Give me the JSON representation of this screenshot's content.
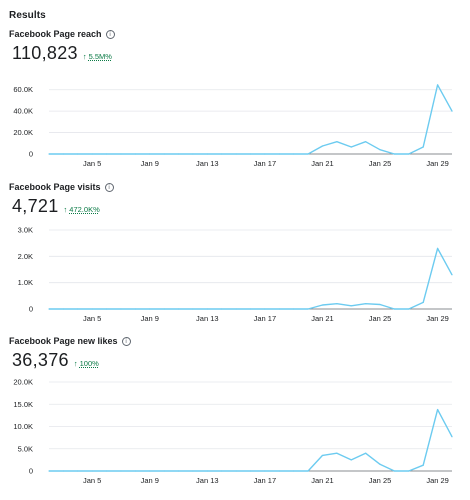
{
  "page": {
    "title": "Results"
  },
  "colors": {
    "line": "#6ccbf0",
    "grid": "#e4e6eb",
    "axis": "#8a8d91",
    "positive": "#0a7a45"
  },
  "icons": {
    "info": "info-icon",
    "up_arrow": "arrow-up-icon"
  },
  "metrics": [
    {
      "label": "Facebook Page reach",
      "info_glyph": "i",
      "value": "110,823",
      "change_arrow": "↑",
      "change": "5.5M%"
    },
    {
      "label": "Facebook Page visits",
      "info_glyph": "i",
      "value": "4,721",
      "change_arrow": "↑",
      "change": "472.0K%"
    },
    {
      "label": "Facebook Page new likes",
      "info_glyph": "i",
      "value": "36,376",
      "change_arrow": "↑",
      "change": "100%"
    }
  ],
  "chart_data": [
    {
      "type": "line",
      "x": [
        "Jan 2",
        "Jan 3",
        "Jan 4",
        "Jan 5",
        "Jan 6",
        "Jan 7",
        "Jan 8",
        "Jan 9",
        "Jan 10",
        "Jan 11",
        "Jan 12",
        "Jan 13",
        "Jan 14",
        "Jan 15",
        "Jan 16",
        "Jan 17",
        "Jan 18",
        "Jan 19",
        "Jan 20",
        "Jan 21",
        "Jan 22",
        "Jan 23",
        "Jan 24",
        "Jan 25",
        "Jan 26",
        "Jan 27",
        "Jan 28",
        "Jan 29",
        "Jan 30"
      ],
      "series": [
        {
          "values": [
            0,
            0,
            0,
            0,
            0,
            0,
            0,
            0,
            0,
            0,
            0,
            0,
            0,
            0,
            0,
            0,
            0,
            0,
            0,
            7500,
            11500,
            6500,
            11500,
            4000,
            0,
            0,
            6500,
            64500,
            40000
          ]
        }
      ],
      "x_tick_labels": [
        "Jan 5",
        "Jan 9",
        "Jan 13",
        "Jan 17",
        "Jan 21",
        "Jan 25",
        "Jan 29"
      ],
      "y_tick_labels": [
        "0",
        "20.0K",
        "40.0K",
        "60.0K"
      ],
      "y_ticks": [
        0,
        20000,
        40000,
        60000
      ],
      "ylim": [
        0,
        70000
      ],
      "grid": true,
      "legend": "none"
    },
    {
      "type": "line",
      "x": [
        "Jan 2",
        "Jan 3",
        "Jan 4",
        "Jan 5",
        "Jan 6",
        "Jan 7",
        "Jan 8",
        "Jan 9",
        "Jan 10",
        "Jan 11",
        "Jan 12",
        "Jan 13",
        "Jan 14",
        "Jan 15",
        "Jan 16",
        "Jan 17",
        "Jan 18",
        "Jan 19",
        "Jan 20",
        "Jan 21",
        "Jan 22",
        "Jan 23",
        "Jan 24",
        "Jan 25",
        "Jan 26",
        "Jan 27",
        "Jan 28",
        "Jan 29",
        "Jan 30"
      ],
      "series": [
        {
          "values": [
            0,
            0,
            0,
            0,
            0,
            0,
            0,
            0,
            0,
            0,
            0,
            0,
            0,
            0,
            0,
            0,
            0,
            0,
            0,
            150,
            200,
            120,
            200,
            170,
            0,
            0,
            250,
            2300,
            1300
          ]
        }
      ],
      "x_tick_labels": [
        "Jan 5",
        "Jan 9",
        "Jan 13",
        "Jan 17",
        "Jan 21",
        "Jan 25",
        "Jan 29"
      ],
      "y_tick_labels": [
        "0",
        "1.0K",
        "2.0K",
        "3.0K"
      ],
      "y_ticks": [
        0,
        1000,
        2000,
        3000
      ],
      "ylim": [
        0,
        3000
      ],
      "grid": true,
      "legend": "none"
    },
    {
      "type": "line",
      "x": [
        "Jan 2",
        "Jan 3",
        "Jan 4",
        "Jan 5",
        "Jan 6",
        "Jan 7",
        "Jan 8",
        "Jan 9",
        "Jan 10",
        "Jan 11",
        "Jan 12",
        "Jan 13",
        "Jan 14",
        "Jan 15",
        "Jan 16",
        "Jan 17",
        "Jan 18",
        "Jan 19",
        "Jan 20",
        "Jan 21",
        "Jan 22",
        "Jan 23",
        "Jan 24",
        "Jan 25",
        "Jan 26",
        "Jan 27",
        "Jan 28",
        "Jan 29",
        "Jan 30"
      ],
      "series": [
        {
          "values": [
            0,
            0,
            0,
            0,
            0,
            0,
            0,
            0,
            0,
            0,
            0,
            0,
            0,
            0,
            0,
            0,
            0,
            0,
            0,
            3500,
            4000,
            2500,
            4000,
            1500,
            0,
            0,
            1300,
            13800,
            7700
          ]
        }
      ],
      "x_tick_labels": [
        "Jan 5",
        "Jan 9",
        "Jan 13",
        "Jan 17",
        "Jan 21",
        "Jan 25",
        "Jan 29"
      ],
      "y_tick_labels": [
        "0",
        "5.0K",
        "10.0K",
        "15.0K",
        "20.0K"
      ],
      "y_ticks": [
        0,
        5000,
        10000,
        15000,
        20000
      ],
      "ylim": [
        0,
        20000
      ],
      "grid": true,
      "legend": "none"
    }
  ]
}
